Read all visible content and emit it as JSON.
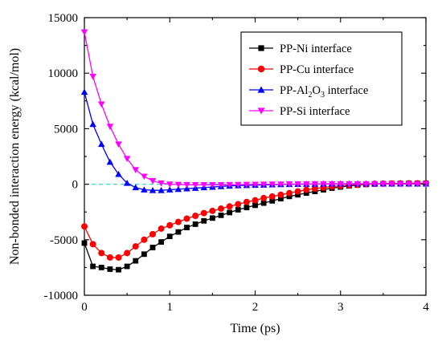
{
  "chart_data": {
    "type": "line",
    "title": "",
    "xlabel": "Time (ps)",
    "ylabel": "Non-bonded interaction energy (kcal/mol)",
    "xlim": [
      0,
      4
    ],
    "ylim": [
      -10000,
      15000
    ],
    "xticks": [
      "0",
      "1",
      "2",
      "3",
      "4"
    ],
    "yticks": [
      "-10000",
      "-5000",
      "0",
      "5000",
      "10000",
      "15000"
    ],
    "grid": false,
    "legend_position": "top-right",
    "zero_line": {
      "y": 0,
      "color": "#33dddd",
      "style": "dashed"
    },
    "series": [
      {
        "name": "PP-Ni interface",
        "label": {
          "base": "PP-Ni interface"
        },
        "color": "#000000",
        "marker": "square",
        "x": [
          0,
          0.1,
          0.2,
          0.3,
          0.4,
          0.5,
          0.6,
          0.7,
          0.8,
          0.9,
          1.0,
          1.1,
          1.2,
          1.3,
          1.4,
          1.5,
          1.6,
          1.7,
          1.8,
          1.9,
          2.0,
          2.1,
          2.2,
          2.3,
          2.4,
          2.5,
          2.6,
          2.7,
          2.8,
          2.9,
          3.0,
          3.1,
          3.2,
          3.3,
          3.4,
          3.5,
          3.6,
          3.7,
          3.8,
          3.9,
          4.0
        ],
        "y": [
          -5300,
          -7400,
          -7500,
          -7650,
          -7700,
          -7400,
          -6900,
          -6300,
          -5700,
          -5200,
          -4700,
          -4300,
          -3900,
          -3600,
          -3300,
          -3050,
          -2800,
          -2550,
          -2300,
          -2100,
          -1900,
          -1700,
          -1500,
          -1300,
          -1100,
          -950,
          -800,
          -650,
          -500,
          -350,
          -250,
          -150,
          -80,
          -20,
          20,
          40,
          60,
          70,
          80,
          80,
          80
        ]
      },
      {
        "name": "PP-Cu interface",
        "label": {
          "base": "PP-Cu interface"
        },
        "color": "#ff0000",
        "marker": "circle",
        "x": [
          0,
          0.1,
          0.2,
          0.3,
          0.4,
          0.5,
          0.6,
          0.7,
          0.8,
          0.9,
          1.0,
          1.1,
          1.2,
          1.3,
          1.4,
          1.5,
          1.6,
          1.7,
          1.8,
          1.9,
          2.0,
          2.1,
          2.2,
          2.3,
          2.4,
          2.5,
          2.6,
          2.7,
          2.8,
          2.9,
          3.0,
          3.1,
          3.2,
          3.3,
          3.4,
          3.5,
          3.6,
          3.7,
          3.8,
          3.9,
          4.0
        ],
        "y": [
          -3800,
          -5400,
          -6200,
          -6600,
          -6600,
          -6200,
          -5600,
          -5000,
          -4500,
          -4000,
          -3700,
          -3400,
          -3100,
          -2850,
          -2600,
          -2400,
          -2200,
          -2000,
          -1800,
          -1600,
          -1450,
          -1250,
          -1100,
          -950,
          -800,
          -650,
          -500,
          -400,
          -300,
          -200,
          -150,
          -100,
          -50,
          0,
          30,
          50,
          60,
          70,
          80,
          80,
          80
        ]
      },
      {
        "name": "PP-Al2O3 interface",
        "label": {
          "base": "PP-Al",
          "sub1": "2",
          "mid": "O",
          "sub2": "3",
          "tail": " interface"
        },
        "color": "#0000ff",
        "marker": "triangle-up",
        "x": [
          0,
          0.1,
          0.2,
          0.3,
          0.4,
          0.5,
          0.6,
          0.7,
          0.8,
          0.9,
          1.0,
          1.1,
          1.2,
          1.3,
          1.4,
          1.5,
          1.6,
          1.7,
          1.8,
          1.9,
          2.0,
          2.1,
          2.2,
          2.3,
          2.4,
          2.5,
          2.6,
          2.7,
          2.8,
          2.9,
          3.0,
          3.1,
          3.2,
          3.3,
          3.4,
          3.5,
          3.6,
          3.7,
          3.8,
          3.9,
          4.0
        ],
        "y": [
          8300,
          5400,
          3600,
          2000,
          900,
          100,
          -300,
          -500,
          -550,
          -550,
          -500,
          -450,
          -400,
          -350,
          -300,
          -250,
          -200,
          -150,
          -120,
          -100,
          -80,
          -60,
          -40,
          -20,
          -10,
          0,
          10,
          20,
          30,
          40,
          40,
          40,
          40,
          40,
          40,
          40,
          40,
          40,
          40,
          40,
          40
        ]
      },
      {
        "name": "PP-Si interface",
        "label": {
          "base": "PP-Si interface"
        },
        "color": "#ff00ff",
        "marker": "triangle-down",
        "x": [
          0,
          0.1,
          0.2,
          0.3,
          0.4,
          0.5,
          0.6,
          0.7,
          0.8,
          0.9,
          1.0,
          1.1,
          1.2,
          1.3,
          1.4,
          1.5,
          1.6,
          1.7,
          1.8,
          1.9,
          2.0,
          2.1,
          2.2,
          2.3,
          2.4,
          2.5,
          2.6,
          2.7,
          2.8,
          2.9,
          3.0,
          3.1,
          3.2,
          3.3,
          3.4,
          3.5,
          3.6,
          3.7,
          3.8,
          3.9,
          4.0
        ],
        "y": [
          13700,
          9700,
          7200,
          5200,
          3600,
          2300,
          1300,
          700,
          300,
          100,
          0,
          -30,
          -50,
          -60,
          -60,
          -60,
          -60,
          -50,
          -40,
          -30,
          -20,
          -10,
          0,
          0,
          10,
          10,
          20,
          20,
          20,
          20,
          20,
          20,
          20,
          20,
          20,
          20,
          20,
          20,
          20,
          20,
          20
        ]
      }
    ]
  }
}
